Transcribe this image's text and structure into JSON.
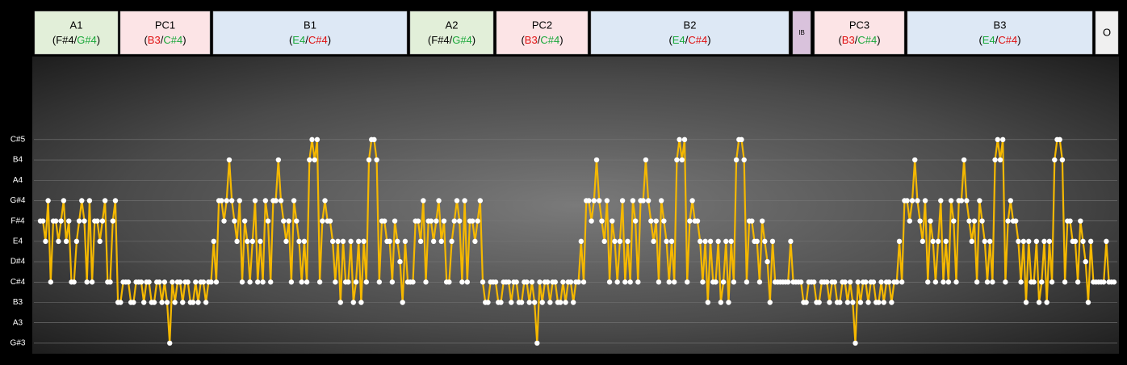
{
  "chart_data": {
    "type": "line",
    "sections": [
      {
        "name": "A1",
        "fill": "#e2efd9",
        "notes": [
          {
            "text": "F#4",
            "color": "#000000"
          },
          {
            "text": "G#4",
            "color": "#1aa83a"
          }
        ]
      },
      {
        "name": "PC1",
        "fill": "#fce4e6",
        "notes": [
          {
            "text": "B3",
            "color": "#e01010"
          },
          {
            "text": "C#4",
            "color": "#1aa83a"
          }
        ]
      },
      {
        "name": "B1",
        "fill": "#dde8f5",
        "notes": [
          {
            "text": "E4",
            "color": "#1aa83a"
          },
          {
            "text": "C#4",
            "color": "#e01010"
          }
        ]
      },
      {
        "name": "A2",
        "fill": "#e2efd9",
        "notes": [
          {
            "text": "F#4",
            "color": "#000000"
          },
          {
            "text": "G#4",
            "color": "#1aa83a"
          }
        ]
      },
      {
        "name": "PC2",
        "fill": "#fce4e6",
        "notes": [
          {
            "text": "B3",
            "color": "#e01010"
          },
          {
            "text": "C#4",
            "color": "#1aa83a"
          }
        ]
      },
      {
        "name": "B2",
        "fill": "#dde8f5",
        "notes": [
          {
            "text": "E4",
            "color": "#1aa83a"
          },
          {
            "text": "C#4",
            "color": "#e01010"
          }
        ]
      },
      {
        "name": "IB",
        "fill": "#d9c2dc",
        "notes": []
      },
      {
        "name": "PC3",
        "fill": "#fce4e6",
        "notes": [
          {
            "text": "B3",
            "color": "#e01010"
          },
          {
            "text": "C#4",
            "color": "#1aa83a"
          }
        ]
      },
      {
        "name": "B3",
        "fill": "#dde8f5",
        "notes": [
          {
            "text": "E4",
            "color": "#1aa83a"
          },
          {
            "text": "C#4",
            "color": "#e01010"
          }
        ]
      },
      {
        "name": "O",
        "fill": "#f0f0f0",
        "notes": []
      }
    ],
    "note_open": "(",
    "note_sep": "/",
    "note_close": ")",
    "ylim": [
      -0.4,
      14
    ],
    "yticks": [
      {
        "value": 0,
        "label": "G#3"
      },
      {
        "value": 1,
        "label": "A3"
      },
      {
        "value": 2,
        "label": "B3"
      },
      {
        "value": 3,
        "label": "C#4"
      },
      {
        "value": 4,
        "label": "D#4"
      },
      {
        "value": 5,
        "label": "E4"
      },
      {
        "value": 6,
        "label": "F#4"
      },
      {
        "value": 7,
        "label": "G#4"
      },
      {
        "value": 8,
        "label": "A4"
      },
      {
        "value": 9,
        "label": "B4"
      },
      {
        "value": 10,
        "label": "C#5"
      }
    ],
    "grid": true,
    "series": [
      {
        "color": "#f5b800",
        "values": [
          6,
          6,
          5,
          7,
          3,
          6,
          6,
          5,
          6,
          7,
          5,
          6,
          3,
          3,
          5,
          6,
          7,
          6,
          3,
          7,
          3,
          6,
          6,
          5,
          6,
          7,
          3,
          3,
          6,
          7,
          2,
          2,
          3,
          3,
          3,
          2,
          2,
          3,
          3,
          3,
          2,
          3,
          3,
          2,
          2,
          3,
          3,
          2,
          3,
          2,
          0,
          3,
          2,
          3,
          3,
          2,
          3,
          3,
          2,
          2,
          3,
          2,
          3,
          3,
          2,
          3,
          3,
          5,
          3,
          7,
          7,
          6,
          7,
          9,
          7,
          6,
          5,
          7,
          3,
          6,
          5,
          3,
          5,
          7,
          3,
          5,
          3,
          7,
          6,
          3,
          7,
          7,
          9,
          7,
          6,
          5,
          6,
          3,
          7,
          6,
          5,
          3,
          5,
          3,
          9,
          10,
          9,
          10,
          3,
          6,
          7,
          6,
          6,
          5,
          3,
          5,
          2,
          5,
          3,
          3,
          5,
          2,
          3,
          5,
          2,
          5,
          3,
          9,
          10,
          10,
          9,
          3,
          6,
          6,
          5,
          5,
          3,
          6,
          5,
          4,
          2,
          5,
          3,
          3,
          3,
          6,
          6,
          5,
          7,
          3,
          6,
          6,
          5,
          6,
          7,
          5,
          6,
          3,
          3,
          5,
          6,
          7,
          6,
          3,
          7,
          3,
          6,
          6,
          5,
          6,
          7,
          3,
          2,
          2,
          3,
          3,
          3,
          2,
          2,
          3,
          3,
          3,
          2,
          3,
          3,
          2,
          2,
          3,
          3,
          2,
          3,
          2,
          0,
          3,
          2,
          3,
          3,
          2,
          3,
          3,
          2,
          2,
          3,
          2,
          3,
          3,
          2,
          3,
          3,
          5,
          3,
          7,
          7,
          6,
          7,
          9,
          7,
          6,
          5,
          7,
          3,
          6,
          5,
          3,
          5,
          7,
          3,
          5,
          3,
          7,
          6,
          3,
          7,
          7,
          9,
          7,
          6,
          5,
          6,
          3,
          7,
          6,
          5,
          3,
          5,
          3,
          9,
          10,
          9,
          10,
          3,
          6,
          7,
          6,
          6,
          5,
          3,
          5,
          2,
          5,
          3,
          3,
          5,
          2,
          3,
          5,
          2,
          5,
          3,
          9,
          10,
          10,
          9,
          3,
          6,
          6,
          5,
          5,
          3,
          6,
          5,
          4,
          2,
          5,
          3,
          3,
          3,
          3,
          3,
          3,
          5,
          3,
          3,
          3,
          3,
          2,
          2,
          3,
          3,
          3,
          2,
          2,
          3,
          3,
          3,
          2,
          3,
          3,
          2,
          2,
          3,
          3,
          2,
          3,
          2,
          0,
          3,
          2,
          3,
          3,
          2,
          3,
          3,
          2,
          2,
          3,
          2,
          3,
          3,
          2,
          3,
          3,
          5,
          3,
          7,
          7,
          6,
          7,
          9,
          7,
          6,
          5,
          7,
          3,
          6,
          5,
          3,
          5,
          7,
          3,
          5,
          3,
          7,
          6,
          3,
          7,
          7,
          9,
          7,
          6,
          5,
          6,
          3,
          7,
          6,
          5,
          3,
          5,
          3,
          9,
          10,
          9,
          10,
          3,
          6,
          7,
          6,
          6,
          5,
          3,
          5,
          2,
          5,
          3,
          3,
          5,
          2,
          3,
          5,
          2,
          5,
          3,
          9,
          10,
          10,
          9,
          3,
          6,
          6,
          5,
          5,
          3,
          6,
          5,
          4,
          2,
          5,
          3,
          3,
          3,
          3,
          3,
          5,
          3,
          3,
          3
        ]
      }
    ]
  }
}
